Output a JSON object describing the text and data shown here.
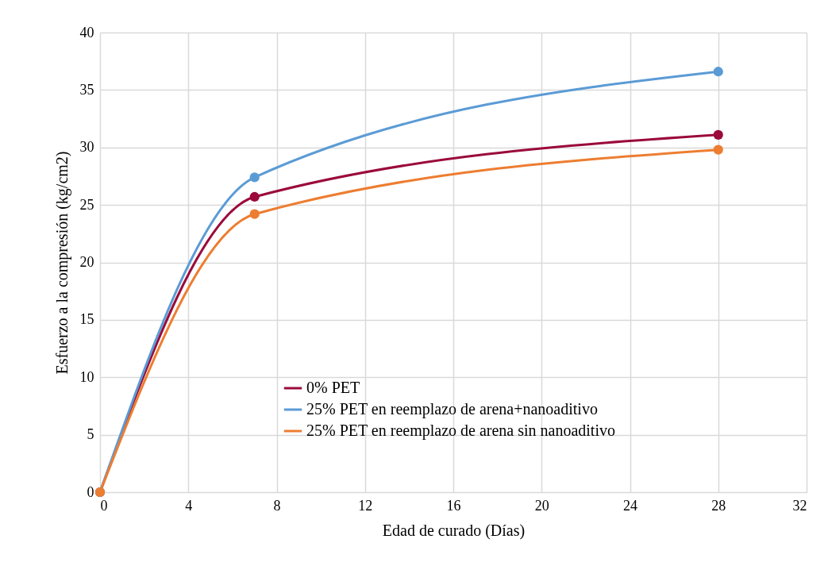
{
  "chart_data": {
    "type": "line",
    "xlabel": "Edad de curado (Días)",
    "ylabel": "Esfuerzo a la compresión (kg/cm2)",
    "x": [
      0,
      7,
      28
    ],
    "series": [
      {
        "name": "0% PET",
        "color": "#9b0a3a",
        "values": [
          0,
          25.7,
          31.1
        ]
      },
      {
        "name": "25% PET en reemplazo de arena+nanoaditivo",
        "color": "#5b9bd5",
        "values": [
          0,
          27.4,
          36.6
        ]
      },
      {
        "name": "25% PET en reemplazo de arena sin nanoaditivo",
        "color": "#ed7d31",
        "values": [
          0,
          24.2,
          29.8
        ]
      }
    ],
    "xlim": [
      0,
      32
    ],
    "xticks": [
      0,
      4,
      8,
      12,
      16,
      20,
      24,
      28,
      32
    ],
    "ylim": [
      0,
      40
    ],
    "yticks": [
      0,
      5,
      10,
      15,
      20,
      25,
      30,
      35,
      40
    ],
    "grid": true,
    "legend": "bottom",
    "marker": "circle",
    "line_style": "solid"
  }
}
